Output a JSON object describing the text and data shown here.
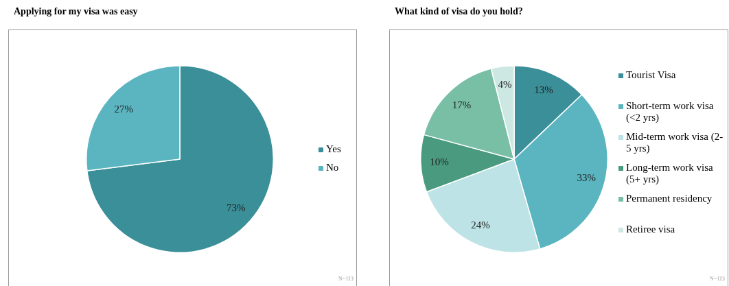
{
  "chart_data": [
    {
      "type": "pie",
      "title": "Applying for my visa was easy",
      "categories": [
        "Yes",
        "No"
      ],
      "values": [
        73,
        27
      ],
      "colors": [
        "#3a8f98",
        "#5ab5c0"
      ],
      "value_labels": [
        "73%",
        "27%"
      ],
      "legend": "right",
      "annotations": [
        "N=113"
      ]
    },
    {
      "type": "pie",
      "title": "What kind of visa do you hold?",
      "categories": [
        "Tourist Visa",
        "Short-term work visa (<2 yrs)",
        "Mid-term work visa (2-5 yrs)",
        "Long-term work visa (5+ yrs)",
        "Permanent residency",
        "Retiree visa"
      ],
      "values": [
        13,
        33,
        24,
        10,
        17,
        4
      ],
      "colors": [
        "#3a8f98",
        "#5ab5c0",
        "#bde3e6",
        "#4a9a80",
        "#78bfa6",
        "#cde8e2"
      ],
      "value_labels": [
        "13%",
        "33%",
        "24%",
        "10%",
        "17%",
        "4%"
      ],
      "legend": "right",
      "annotations": [
        "N=113"
      ]
    }
  ]
}
